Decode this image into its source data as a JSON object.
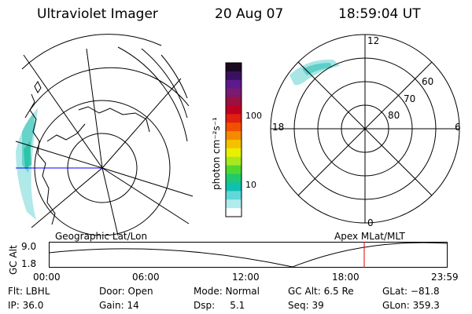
{
  "header": {
    "instrument": "Ultraviolet Imager",
    "date": "20 Aug 07",
    "time": "18:59:04 UT"
  },
  "colorbar": {
    "label": "photon cm⁻²s⁻¹",
    "ticks": [
      "100",
      "10"
    ],
    "colors": [
      "#1a0a1f",
      "#3a1060",
      "#5c1a8a",
      "#7a1a70",
      "#9a1040",
      "#c00020",
      "#e02010",
      "#f05000",
      "#f58a00",
      "#f5c000",
      "#e8f000",
      "#a8e820",
      "#50d830",
      "#20c870",
      "#10c0b0",
      "#60d8d8",
      "#b0ecec",
      "#ffffff"
    ]
  },
  "left_map": {
    "caption": "Geographic Lat/Lon"
  },
  "right_map": {
    "caption": "Apex MLat/MLT",
    "mlt_labels": {
      "top": "12",
      "left": "18",
      "right": "6",
      "bottom": "0"
    },
    "lat_labels": [
      "60",
      "70",
      "80"
    ]
  },
  "altitude_plot": {
    "ylabel": "GC Alt",
    "yticks": [
      "9.0",
      "1.8"
    ],
    "xticks": [
      "00:00",
      "06:00",
      "12:00",
      "18:00",
      "23:59"
    ],
    "marker_color": "#e00000"
  },
  "footer": {
    "flt": "Flt: LBHL",
    "ip": "IP: 36.0",
    "door": "Door: Open",
    "gain": "Gain: 14",
    "mode": "Mode: Normal",
    "dsp": "Dsp:     5.1",
    "gcalt": "GC Alt: 6.5 Re",
    "seq": "Seq: 39",
    "glat": "GLat: −81.8",
    "glon": "GLon: 359.3"
  }
}
